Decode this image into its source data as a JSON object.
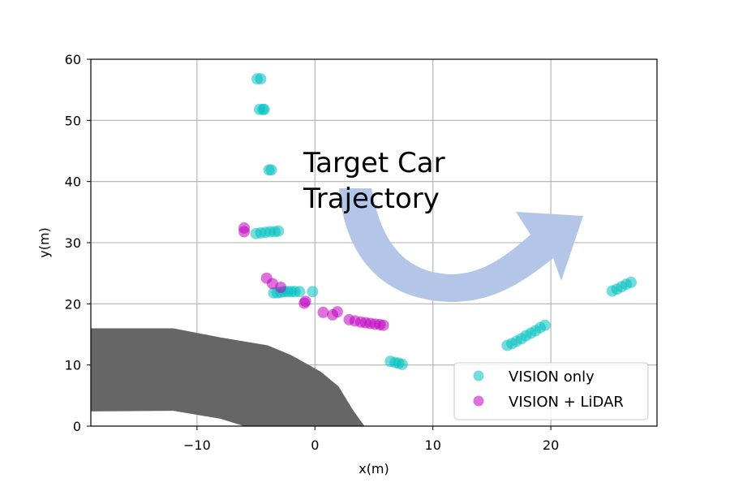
{
  "chart_data": {
    "type": "scatter",
    "title": "",
    "xlabel": "x(m)",
    "ylabel": "y(m)",
    "xlim": [
      -19,
      29
    ],
    "ylim": [
      0,
      60
    ],
    "xticks": [
      -10,
      0,
      10,
      20
    ],
    "xtick_labels": [
      "−10",
      "0",
      "10",
      "20"
    ],
    "yticks": [
      0,
      10,
      20,
      30,
      40,
      50,
      60
    ],
    "grid": true,
    "legend_position": "bottom-right",
    "annotation": {
      "lines": [
        "Target Car",
        "Trajectory"
      ]
    },
    "arrow_color": "#b4c6e7",
    "obstacle_color": "#666666",
    "obstacle_polygon": [
      [
        -19,
        16
      ],
      [
        -12,
        16
      ],
      [
        -8,
        14.5
      ],
      [
        -4,
        13.2
      ],
      [
        -2,
        11.6
      ],
      [
        0.5,
        8.9
      ],
      [
        2,
        6.5
      ],
      [
        3.2,
        2.7
      ],
      [
        4.2,
        0
      ],
      [
        -6,
        0
      ],
      [
        -8,
        1.2
      ],
      [
        -12,
        2.5
      ],
      [
        -19,
        2.4
      ]
    ],
    "series": [
      {
        "name": "VISION only",
        "color": "#00bfbf",
        "points": [
          [
            -4.9,
            56.8
          ],
          [
            -4.6,
            56.8
          ],
          [
            -4.7,
            51.8
          ],
          [
            -4.4,
            51.8
          ],
          [
            -4.3,
            51.8
          ],
          [
            -3.9,
            41.9
          ],
          [
            -3.7,
            41.9
          ],
          [
            -5.0,
            31.5
          ],
          [
            -4.6,
            31.6
          ],
          [
            -4.2,
            31.7
          ],
          [
            -3.8,
            31.8
          ],
          [
            -3.4,
            31.8
          ],
          [
            -3.1,
            31.9
          ],
          [
            -3.5,
            21.8
          ],
          [
            -3.2,
            21.8
          ],
          [
            -2.9,
            21.9
          ],
          [
            -2.6,
            22.0
          ],
          [
            -2.3,
            22.0
          ],
          [
            -2.0,
            22.0
          ],
          [
            -1.7,
            22.0
          ],
          [
            -1.3,
            22.0
          ],
          [
            -0.2,
            22.0
          ],
          [
            6.4,
            10.6
          ],
          [
            6.8,
            10.4
          ],
          [
            7.1,
            10.3
          ],
          [
            7.4,
            10.1
          ],
          [
            16.3,
            13.2
          ],
          [
            16.7,
            13.5
          ],
          [
            17.1,
            13.9
          ],
          [
            17.5,
            14.3
          ],
          [
            17.9,
            14.8
          ],
          [
            18.3,
            15.2
          ],
          [
            18.7,
            15.6
          ],
          [
            19.1,
            16.1
          ],
          [
            19.5,
            16.5
          ],
          [
            25.2,
            22.1
          ],
          [
            25.6,
            22.4
          ],
          [
            26.0,
            22.8
          ],
          [
            26.4,
            23.2
          ],
          [
            26.8,
            23.5
          ]
        ]
      },
      {
        "name": "VISION + LiDAR",
        "color": "#bf00bf",
        "points": [
          [
            -6.0,
            32.4
          ],
          [
            -6.0,
            31.8
          ],
          [
            -4.1,
            24.2
          ],
          [
            -3.6,
            23.3
          ],
          [
            -2.9,
            22.7
          ],
          [
            -0.9,
            20.1
          ],
          [
            -0.8,
            20.4
          ],
          [
            0.7,
            18.6
          ],
          [
            1.5,
            18.2
          ],
          [
            1.9,
            18.7
          ],
          [
            2.9,
            17.4
          ],
          [
            3.4,
            17.2
          ],
          [
            3.9,
            17.0
          ],
          [
            4.3,
            16.9
          ],
          [
            4.7,
            16.8
          ],
          [
            5.1,
            16.7
          ],
          [
            5.5,
            16.6
          ],
          [
            5.8,
            16.5
          ]
        ]
      }
    ]
  }
}
